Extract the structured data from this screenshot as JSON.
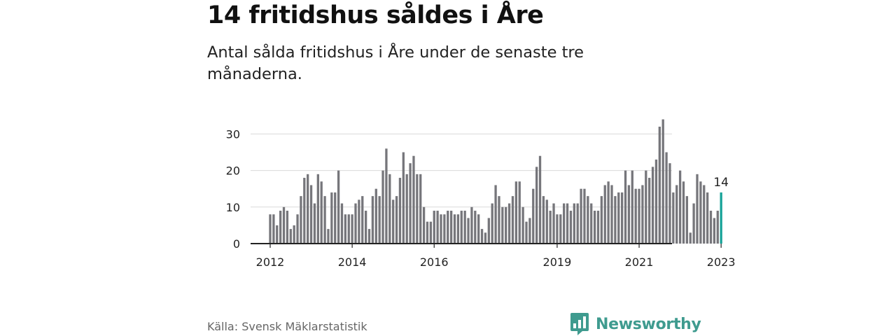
{
  "title": "14 fritidshus såldes i Åre",
  "subtitle": "Antal sålda fritidshus i Åre under de senaste tre månaderna.",
  "source": "Källa: Svensk Mäklarstatistik",
  "brand": {
    "name": "Newsworthy",
    "icon": "newsworthy-logo-icon"
  },
  "colors": {
    "bar": "#76767b",
    "highlight": "#17a398",
    "grid": "#d9d9d9",
    "axis": "#222222",
    "text": "#222222",
    "brand": "#3f9b8f"
  },
  "chart_data": {
    "type": "bar",
    "title": "14 fritidshus såldes i Åre",
    "subtitle": "Antal sålda fritidshus i Åre under de senaste tre månaderna.",
    "xlabel": "",
    "ylabel": "",
    "ylim": [
      0,
      35
    ],
    "yticks": [
      "0",
      "10",
      "20",
      "30"
    ],
    "grid": true,
    "legend": "none",
    "start": "2012-01",
    "xticks": [
      "2012",
      "2014",
      "2016",
      "2019",
      "2021",
      "2023"
    ],
    "values": [
      8,
      8,
      5,
      9,
      10,
      9,
      4,
      5,
      8,
      13,
      18,
      19,
      16,
      11,
      19,
      17,
      13,
      4,
      14,
      14,
      20,
      11,
      8,
      8,
      8,
      11,
      12,
      13,
      9,
      4,
      13,
      15,
      13,
      20,
      26,
      19,
      12,
      13,
      18,
      25,
      19,
      22,
      24,
      19,
      19,
      10,
      6,
      6,
      9,
      9,
      8,
      8,
      9,
      9,
      8,
      8,
      9,
      9,
      7,
      10,
      9,
      8,
      4,
      3,
      7,
      11,
      16,
      13,
      10,
      10,
      11,
      13,
      17,
      17,
      10,
      6,
      7,
      15,
      21,
      24,
      13,
      12,
      9,
      11,
      8,
      8,
      11,
      11,
      9,
      11,
      11,
      15,
      15,
      13,
      11,
      9,
      9,
      13,
      16,
      17,
      16,
      13,
      14,
      14,
      20,
      16,
      20,
      15,
      15,
      16,
      20,
      18,
      21,
      23,
      32,
      34,
      25,
      22,
      14,
      16,
      20,
      17,
      13,
      3,
      11,
      19,
      17,
      16,
      14,
      9,
      7,
      9,
      14
    ],
    "highlight_last": true,
    "annotation": "14"
  }
}
